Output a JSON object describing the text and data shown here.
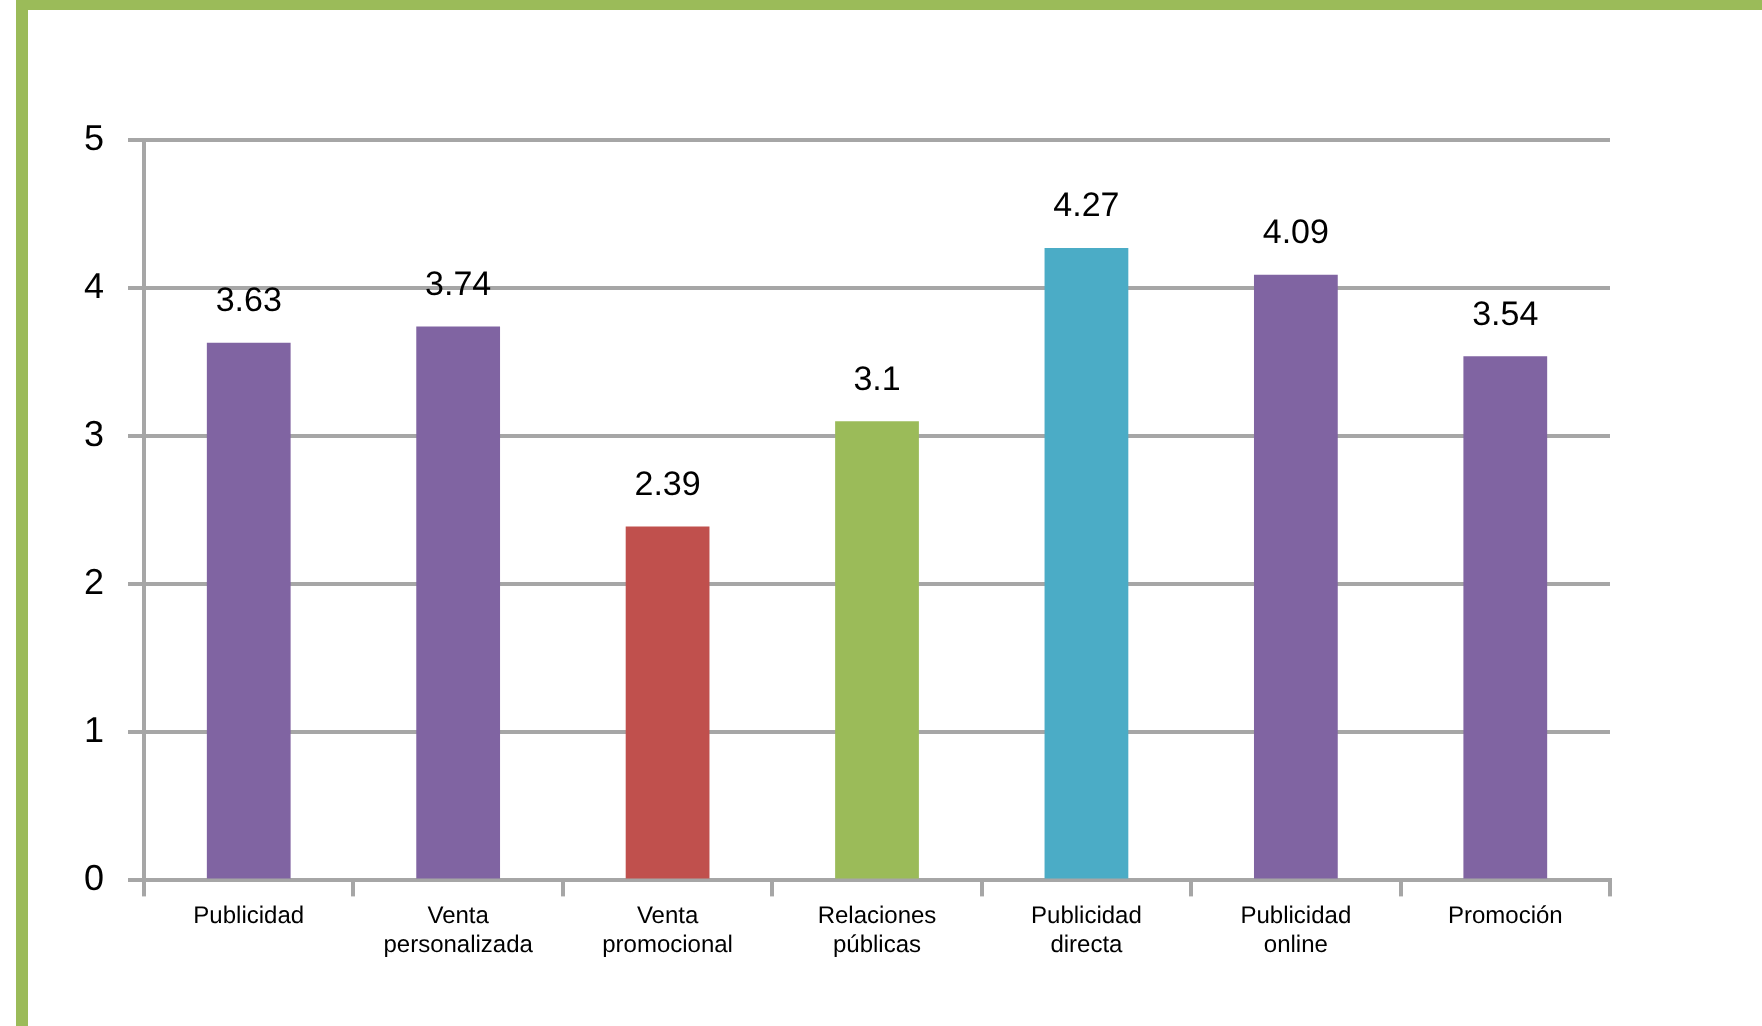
{
  "chart_data": {
    "type": "bar",
    "categories": [
      "Publicidad",
      "Venta personalizada",
      "Venta promocional",
      "Relaciones públicas",
      "Publicidad directa",
      "Publicidad online",
      "Promoción"
    ],
    "values": [
      3.63,
      3.74,
      2.39,
      3.1,
      4.27,
      4.09,
      3.54
    ],
    "colors": [
      "#8064a2",
      "#8064a2",
      "#c0504d",
      "#9bbb59",
      "#4bacc6",
      "#8064a2",
      "#8064a2"
    ],
    "ylim": [
      0,
      5
    ],
    "yticks": [
      0,
      1,
      2,
      3,
      4,
      5
    ],
    "grid": "y",
    "data_labels": true
  }
}
